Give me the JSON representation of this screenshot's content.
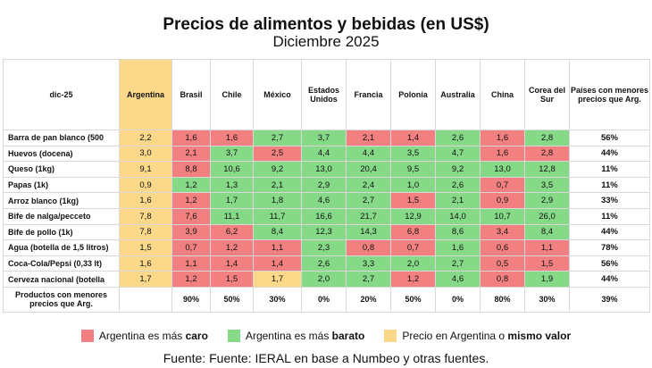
{
  "header": {
    "title": "Precios de alimentos y bebidas (en US$)",
    "subtitle": "Diciembre 2025"
  },
  "table": {
    "header": [
      "dic-25",
      "Argentina",
      "Brasil",
      "Chile",
      "México",
      "Estados Unidos",
      "Francia",
      "Polonia",
      "Australia",
      "China",
      "Corea del Sur",
      "Países con menores precios que Arg."
    ],
    "argentina_color": "#fcd98a",
    "rows": [
      {
        "cells": [
          "Barra de pan blanco (500",
          "2,2",
          "1,6",
          "1,6",
          "2,7",
          "3,7",
          "2,1",
          "1,4",
          "2,6",
          "1,6",
          "2,8",
          "56%"
        ],
        "colors": [
          "#f28080",
          "#f28080",
          "#85d987",
          "#85d987",
          "#f28080",
          "#f28080",
          "#85d987",
          "#f28080",
          "#85d987"
        ]
      },
      {
        "cells": [
          "Huevos (docena)",
          "3,0",
          "2,1",
          "3,7",
          "2,5",
          "4,4",
          "4,4",
          "3,5",
          "4,7",
          "1,6",
          "2,8",
          "44%"
        ],
        "colors": [
          "#f28080",
          "#85d987",
          "#f28080",
          "#85d987",
          "#85d987",
          "#85d987",
          "#85d987",
          "#f28080",
          "#f28080"
        ]
      },
      {
        "cells": [
          "Queso (1kg)",
          "9,1",
          "8,8",
          "10,6",
          "9,2",
          "13,0",
          "20,4",
          "9,5",
          "9,2",
          "13,0",
          "12,8",
          "11%"
        ],
        "colors": [
          "#f28080",
          "#85d987",
          "#85d987",
          "#85d987",
          "#85d987",
          "#85d987",
          "#85d987",
          "#85d987",
          "#85d987"
        ]
      },
      {
        "cells": [
          "Papas (1k)",
          "0,9",
          "1,2",
          "1,3",
          "2,1",
          "2,9",
          "2,4",
          "1,0",
          "2,6",
          "0,7",
          "3,5",
          "11%"
        ],
        "colors": [
          "#85d987",
          "#85d987",
          "#85d987",
          "#85d987",
          "#85d987",
          "#85d987",
          "#85d987",
          "#f28080",
          "#85d987"
        ]
      },
      {
        "cells": [
          "Arroz blanco (1kg)",
          "1,6",
          "1,2",
          "1,7",
          "1,8",
          "4,6",
          "2,7",
          "1,5",
          "2,1",
          "0,9",
          "2,9",
          "33%"
        ],
        "colors": [
          "#f28080",
          "#85d987",
          "#85d987",
          "#85d987",
          "#85d987",
          "#f28080",
          "#85d987",
          "#f28080",
          "#85d987"
        ]
      },
      {
        "cells": [
          "Bife de nalga/pecceto",
          "7,8",
          "7,6",
          "11,1",
          "11,7",
          "16,6",
          "21,7",
          "12,9",
          "14,0",
          "10,7",
          "26,0",
          "11%"
        ],
        "colors": [
          "#f28080",
          "#85d987",
          "#85d987",
          "#85d987",
          "#85d987",
          "#85d987",
          "#85d987",
          "#85d987",
          "#85d987"
        ]
      },
      {
        "cells": [
          "Bife de pollo (1k)",
          "7,8",
          "3,9",
          "6,2",
          "8,4",
          "12,3",
          "14,3",
          "6,8",
          "8,6",
          "3,4",
          "8,4",
          "44%"
        ],
        "colors": [
          "#f28080",
          "#f28080",
          "#85d987",
          "#85d987",
          "#85d987",
          "#f28080",
          "#85d987",
          "#f28080",
          "#85d987"
        ]
      },
      {
        "cells": [
          "Agua (botella de 1,5 litros)",
          "1,5",
          "0,7",
          "1,2",
          "1,1",
          "2,3",
          "0,8",
          "0,7",
          "1,6",
          "0,6",
          "1,1",
          "78%"
        ],
        "colors": [
          "#f28080",
          "#f28080",
          "#f28080",
          "#85d987",
          "#f28080",
          "#f28080",
          "#85d987",
          "#f28080",
          "#f28080"
        ]
      },
      {
        "cells": [
          "Coca-Cola/Pepsi (0,33 lt)",
          "1,6",
          "1,1",
          "1,4",
          "1,4",
          "2,6",
          "3,3",
          "2,0",
          "2,7",
          "0,5",
          "1,5",
          "56%"
        ],
        "colors": [
          "#f28080",
          "#f28080",
          "#f28080",
          "#85d987",
          "#85d987",
          "#85d987",
          "#85d987",
          "#f28080",
          "#f28080"
        ]
      },
      {
        "cells": [
          "Cerveza nacional (botella",
          "1,7",
          "1,2",
          "1,5",
          "1,7",
          "2,0",
          "2,7",
          "1,2",
          "4,6",
          "0,8",
          "1,9",
          "44%"
        ],
        "colors": [
          "#f28080",
          "#f28080",
          "#fcd98a",
          "#85d987",
          "#85d987",
          "#f28080",
          "#85d987",
          "#f28080",
          "#85d987"
        ]
      }
    ],
    "footer": [
      "Productos con menores precios que Arg.",
      null,
      "90%",
      "50%",
      "30%",
      "0%",
      "20%",
      "50%",
      "0%",
      "80%",
      "30%",
      "39%"
    ]
  },
  "legend": [
    {
      "text": "Argentina es más ",
      "bold": "caro",
      "color": "#f28080"
    },
    {
      "text": "Argentina es más ",
      "bold": "barato",
      "color": "#85d987"
    },
    {
      "text": "Precio en Argentina o ",
      "bold": "mismo valor",
      "color": "#fcd98a"
    }
  ],
  "source": "Fuente: Fuente: IERAL en base a Numbeo y otras fuentes."
}
